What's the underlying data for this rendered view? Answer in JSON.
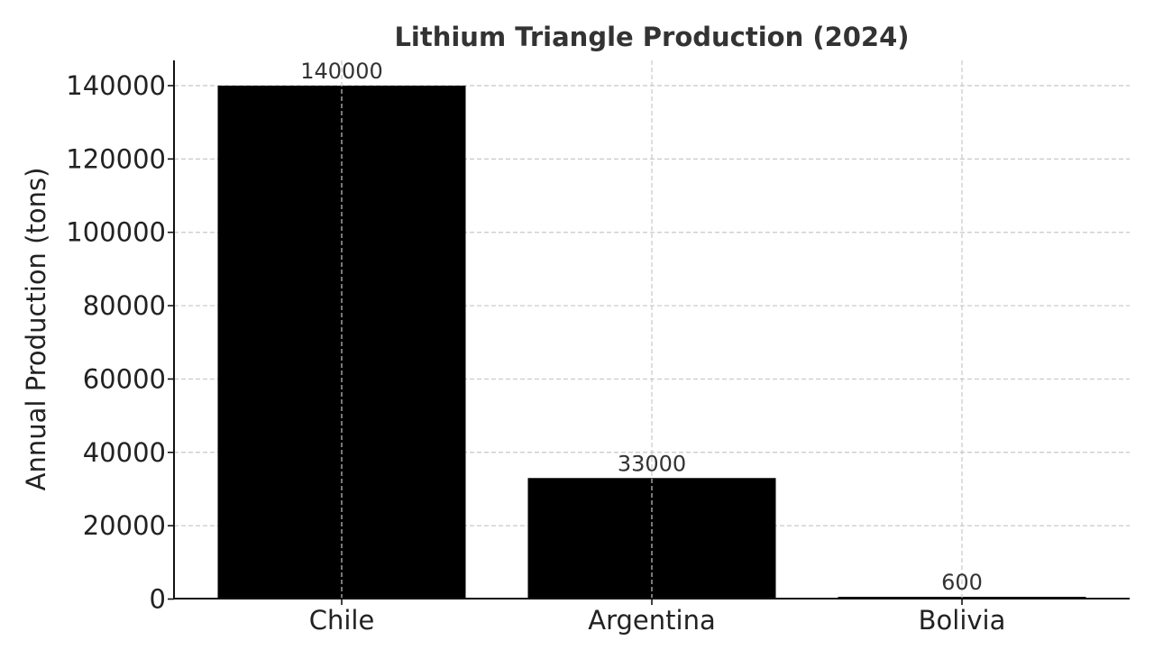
{
  "chart_data": {
    "type": "bar",
    "title": "Lithium Triangle Production (2024)",
    "xlabel": "",
    "ylabel": "Annual Production (tons)",
    "categories": [
      "Chile",
      "Argentina",
      "Bolivia"
    ],
    "values": [
      140000,
      33000,
      600
    ],
    "data_labels": [
      "140000",
      "33000",
      "600"
    ],
    "y_ticks": [
      0,
      20000,
      40000,
      60000,
      80000,
      100000,
      120000,
      140000
    ],
    "y_tick_labels": [
      "0",
      "20000",
      "40000",
      "60000",
      "80000",
      "100000",
      "120000",
      "140000"
    ],
    "ylim": [
      0,
      147000
    ],
    "grid": true,
    "grid_style": "dashed",
    "bar_color": "#000000",
    "grid_color": "#c8c8c8",
    "legend": "none"
  }
}
